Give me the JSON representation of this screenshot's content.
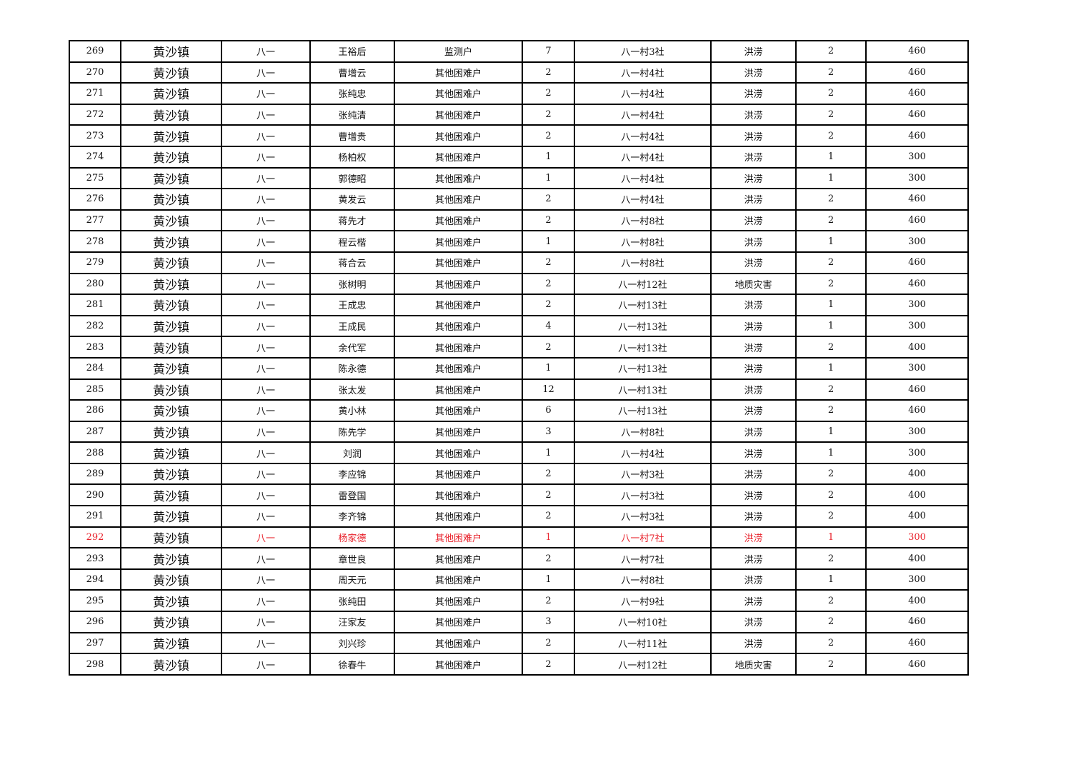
{
  "highlight_color": "#e8202a",
  "columns": [
    "seq",
    "town",
    "village",
    "name",
    "household_type",
    "members",
    "address",
    "disaster_type",
    "months",
    "amount"
  ],
  "highlight_row_seq": "292",
  "rows": [
    [
      "269",
      "黄沙镇",
      "八一",
      "王裕后",
      "监测户",
      "7",
      "八一村3社",
      "洪涝",
      "2",
      "460"
    ],
    [
      "270",
      "黄沙镇",
      "八一",
      "曹增云",
      "其他困难户",
      "2",
      "八一村4社",
      "洪涝",
      "2",
      "460"
    ],
    [
      "271",
      "黄沙镇",
      "八一",
      "张纯忠",
      "其他困难户",
      "2",
      "八一村4社",
      "洪涝",
      "2",
      "460"
    ],
    [
      "272",
      "黄沙镇",
      "八一",
      "张纯清",
      "其他困难户",
      "2",
      "八一村4社",
      "洪涝",
      "2",
      "460"
    ],
    [
      "273",
      "黄沙镇",
      "八一",
      "曹增贵",
      "其他困难户",
      "2",
      "八一村4社",
      "洪涝",
      "2",
      "460"
    ],
    [
      "274",
      "黄沙镇",
      "八一",
      "杨柏权",
      "其他困难户",
      "1",
      "八一村4社",
      "洪涝",
      "1",
      "300"
    ],
    [
      "275",
      "黄沙镇",
      "八一",
      "郭德昭",
      "其他困难户",
      "1",
      "八一村4社",
      "洪涝",
      "1",
      "300"
    ],
    [
      "276",
      "黄沙镇",
      "八一",
      "黄发云",
      "其他困难户",
      "2",
      "八一村4社",
      "洪涝",
      "2",
      "460"
    ],
    [
      "277",
      "黄沙镇",
      "八一",
      "蒋先才",
      "其他困难户",
      "2",
      "八一村8社",
      "洪涝",
      "2",
      "460"
    ],
    [
      "278",
      "黄沙镇",
      "八一",
      "程云楷",
      "其他困难户",
      "1",
      "八一村8社",
      "洪涝",
      "1",
      "300"
    ],
    [
      "279",
      "黄沙镇",
      "八一",
      "蒋合云",
      "其他困难户",
      "2",
      "八一村8社",
      "洪涝",
      "2",
      "460"
    ],
    [
      "280",
      "黄沙镇",
      "八一",
      "张树明",
      "其他困难户",
      "2",
      "八一村12社",
      "地质灾害",
      "2",
      "460"
    ],
    [
      "281",
      "黄沙镇",
      "八一",
      "王成忠",
      "其他困难户",
      "2",
      "八一村13社",
      "洪涝",
      "1",
      "300"
    ],
    [
      "282",
      "黄沙镇",
      "八一",
      "王成民",
      "其他困难户",
      "4",
      "八一村13社",
      "洪涝",
      "1",
      "300"
    ],
    [
      "283",
      "黄沙镇",
      "八一",
      "余代军",
      "其他困难户",
      "2",
      "八一村13社",
      "洪涝",
      "2",
      "400"
    ],
    [
      "284",
      "黄沙镇",
      "八一",
      "陈永德",
      "其他困难户",
      "1",
      "八一村13社",
      "洪涝",
      "1",
      "300"
    ],
    [
      "285",
      "黄沙镇",
      "八一",
      "张太发",
      "其他困难户",
      "12",
      "八一村13社",
      "洪涝",
      "2",
      "460"
    ],
    [
      "286",
      "黄沙镇",
      "八一",
      "黄小林",
      "其他困难户",
      "6",
      "八一村13社",
      "洪涝",
      "2",
      "460"
    ],
    [
      "287",
      "黄沙镇",
      "八一",
      "陈先学",
      "其他困难户",
      "3",
      "八一村8社",
      "洪涝",
      "1",
      "300"
    ],
    [
      "288",
      "黄沙镇",
      "八一",
      "刘润",
      "其他困难户",
      "1",
      "八一村4社",
      "洪涝",
      "1",
      "300"
    ],
    [
      "289",
      "黄沙镇",
      "八一",
      "李应锦",
      "其他困难户",
      "2",
      "八一村3社",
      "洪涝",
      "2",
      "400"
    ],
    [
      "290",
      "黄沙镇",
      "八一",
      "雷登国",
      "其他困难户",
      "2",
      "八一村3社",
      "洪涝",
      "2",
      "400"
    ],
    [
      "291",
      "黄沙镇",
      "八一",
      "李齐锦",
      "其他困难户",
      "2",
      "八一村3社",
      "洪涝",
      "2",
      "400"
    ],
    [
      "292",
      "黄沙镇",
      "八一",
      "杨家德",
      "其他困难户",
      "1",
      "八一村7社",
      "洪涝",
      "1",
      "300"
    ],
    [
      "293",
      "黄沙镇",
      "八一",
      "章世良",
      "其他困难户",
      "2",
      "八一村7社",
      "洪涝",
      "2",
      "400"
    ],
    [
      "294",
      "黄沙镇",
      "八一",
      "周天元",
      "其他困难户",
      "1",
      "八一村8社",
      "洪涝",
      "1",
      "300"
    ],
    [
      "295",
      "黄沙镇",
      "八一",
      "张纯田",
      "其他困难户",
      "2",
      "八一村9社",
      "洪涝",
      "2",
      "400"
    ],
    [
      "296",
      "黄沙镇",
      "八一",
      "汪家友",
      "其他困难户",
      "3",
      "八一村10社",
      "洪涝",
      "2",
      "460"
    ],
    [
      "297",
      "黄沙镇",
      "八一",
      "刘兴珍",
      "其他困难户",
      "2",
      "八一村11社",
      "洪涝",
      "2",
      "460"
    ],
    [
      "298",
      "黄沙镇",
      "八一",
      "徐春牛",
      "其他困难户",
      "2",
      "八一村12社",
      "地质灾害",
      "2",
      "460"
    ]
  ]
}
